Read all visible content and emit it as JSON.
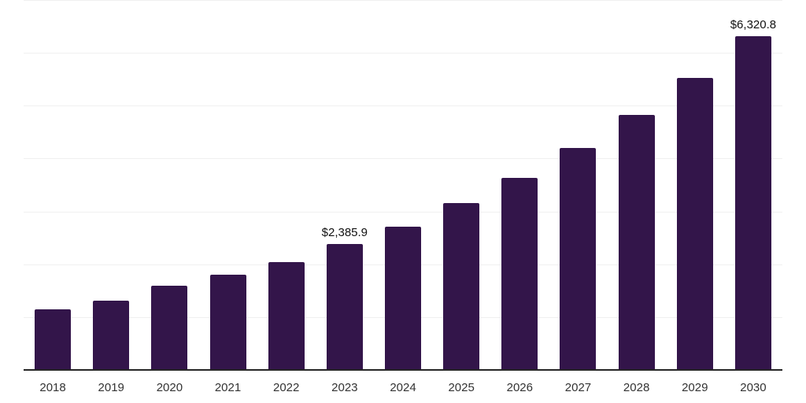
{
  "chart_data": {
    "type": "bar",
    "categories": [
      "2018",
      "2019",
      "2020",
      "2021",
      "2022",
      "2023",
      "2024",
      "2025",
      "2026",
      "2027",
      "2028",
      "2029",
      "2030"
    ],
    "values": [
      1150,
      1310,
      1595,
      1800,
      2040,
      2385.9,
      2715,
      3160,
      3640,
      4205,
      4830,
      5530,
      6320.8
    ],
    "value_labels": [
      "",
      "",
      "",
      "",
      "",
      "$2,385.9",
      "",
      "",
      "",
      "",
      "",
      "",
      "$6,320.8"
    ],
    "ylim": [
      0,
      7000
    ],
    "gridline_step": 1000,
    "grid": true,
    "legend": "none",
    "bar_color": "#33154a",
    "axis_line_color": "#262626",
    "gridline_color": "#f0f0f0",
    "tick_label_color": "#333333",
    "value_label_color": "#111111",
    "background_color": "#ffffff"
  }
}
